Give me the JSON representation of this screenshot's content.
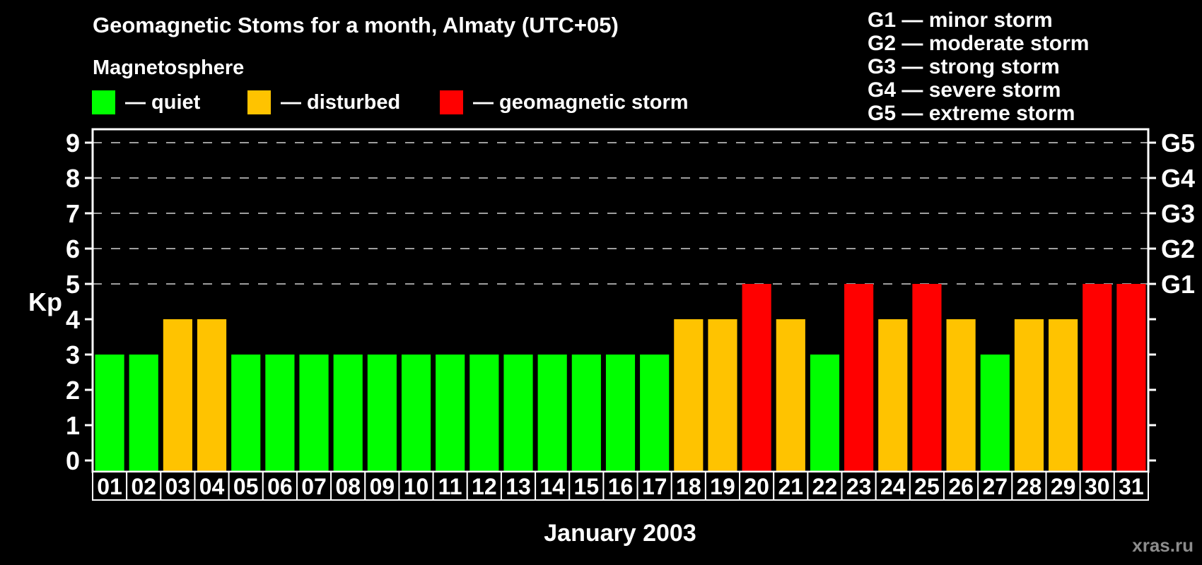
{
  "chart_data": {
    "type": "bar",
    "title": "Geomagnetic Stoms for a month, Almaty (UTC+05)",
    "subtitle": "Magnetosphere",
    "xlabel": "January 2003",
    "ylabel": "Kp",
    "ylim": [
      0,
      9
    ],
    "yticks": [
      0,
      1,
      2,
      3,
      4,
      5,
      6,
      7,
      8,
      9
    ],
    "gridlines_at": [
      5,
      6,
      7,
      8,
      9
    ],
    "grid_style": "dashed",
    "legend_position": "top-left",
    "categories": [
      "01",
      "02",
      "03",
      "04",
      "05",
      "06",
      "07",
      "08",
      "09",
      "10",
      "11",
      "12",
      "13",
      "14",
      "15",
      "16",
      "17",
      "18",
      "19",
      "20",
      "21",
      "22",
      "23",
      "24",
      "25",
      "26",
      "27",
      "28",
      "29",
      "30",
      "31"
    ],
    "values": [
      3,
      3,
      4,
      4,
      3,
      3,
      3,
      3,
      3,
      3,
      3,
      3,
      3,
      3,
      3,
      3,
      3,
      4,
      4,
      5,
      4,
      3,
      5,
      4,
      5,
      4,
      3,
      4,
      4,
      5,
      5
    ],
    "statuses": [
      "quiet",
      "quiet",
      "disturbed",
      "disturbed",
      "quiet",
      "quiet",
      "quiet",
      "quiet",
      "quiet",
      "quiet",
      "quiet",
      "quiet",
      "quiet",
      "quiet",
      "quiet",
      "quiet",
      "quiet",
      "disturbed",
      "disturbed",
      "storm",
      "disturbed",
      "quiet",
      "storm",
      "disturbed",
      "storm",
      "disturbed",
      "quiet",
      "disturbed",
      "disturbed",
      "storm",
      "storm"
    ],
    "status_colors": {
      "quiet": "#00ff00",
      "disturbed": "#ffc300",
      "storm": "#ff0000"
    },
    "legend": [
      {
        "status": "quiet",
        "label": "— quiet"
      },
      {
        "status": "disturbed",
        "label": "— disturbed"
      },
      {
        "status": "storm",
        "label": "— geomagnetic storm"
      }
    ],
    "right_axis": [
      {
        "value": 5,
        "label": "G1"
      },
      {
        "value": 6,
        "label": "G2"
      },
      {
        "value": 7,
        "label": "G3"
      },
      {
        "value": 8,
        "label": "G4"
      },
      {
        "value": 9,
        "label": "G5"
      }
    ],
    "g_scale_legend": [
      "G1 — minor storm",
      "G2 — moderate storm",
      "G3 — strong storm",
      "G4 — severe storm",
      "G5 — extreme storm"
    ],
    "watermark": "xras.ru",
    "axis_color": "#ffffff",
    "gridline_color": "#9e9e9e",
    "background_color": "#000000"
  }
}
